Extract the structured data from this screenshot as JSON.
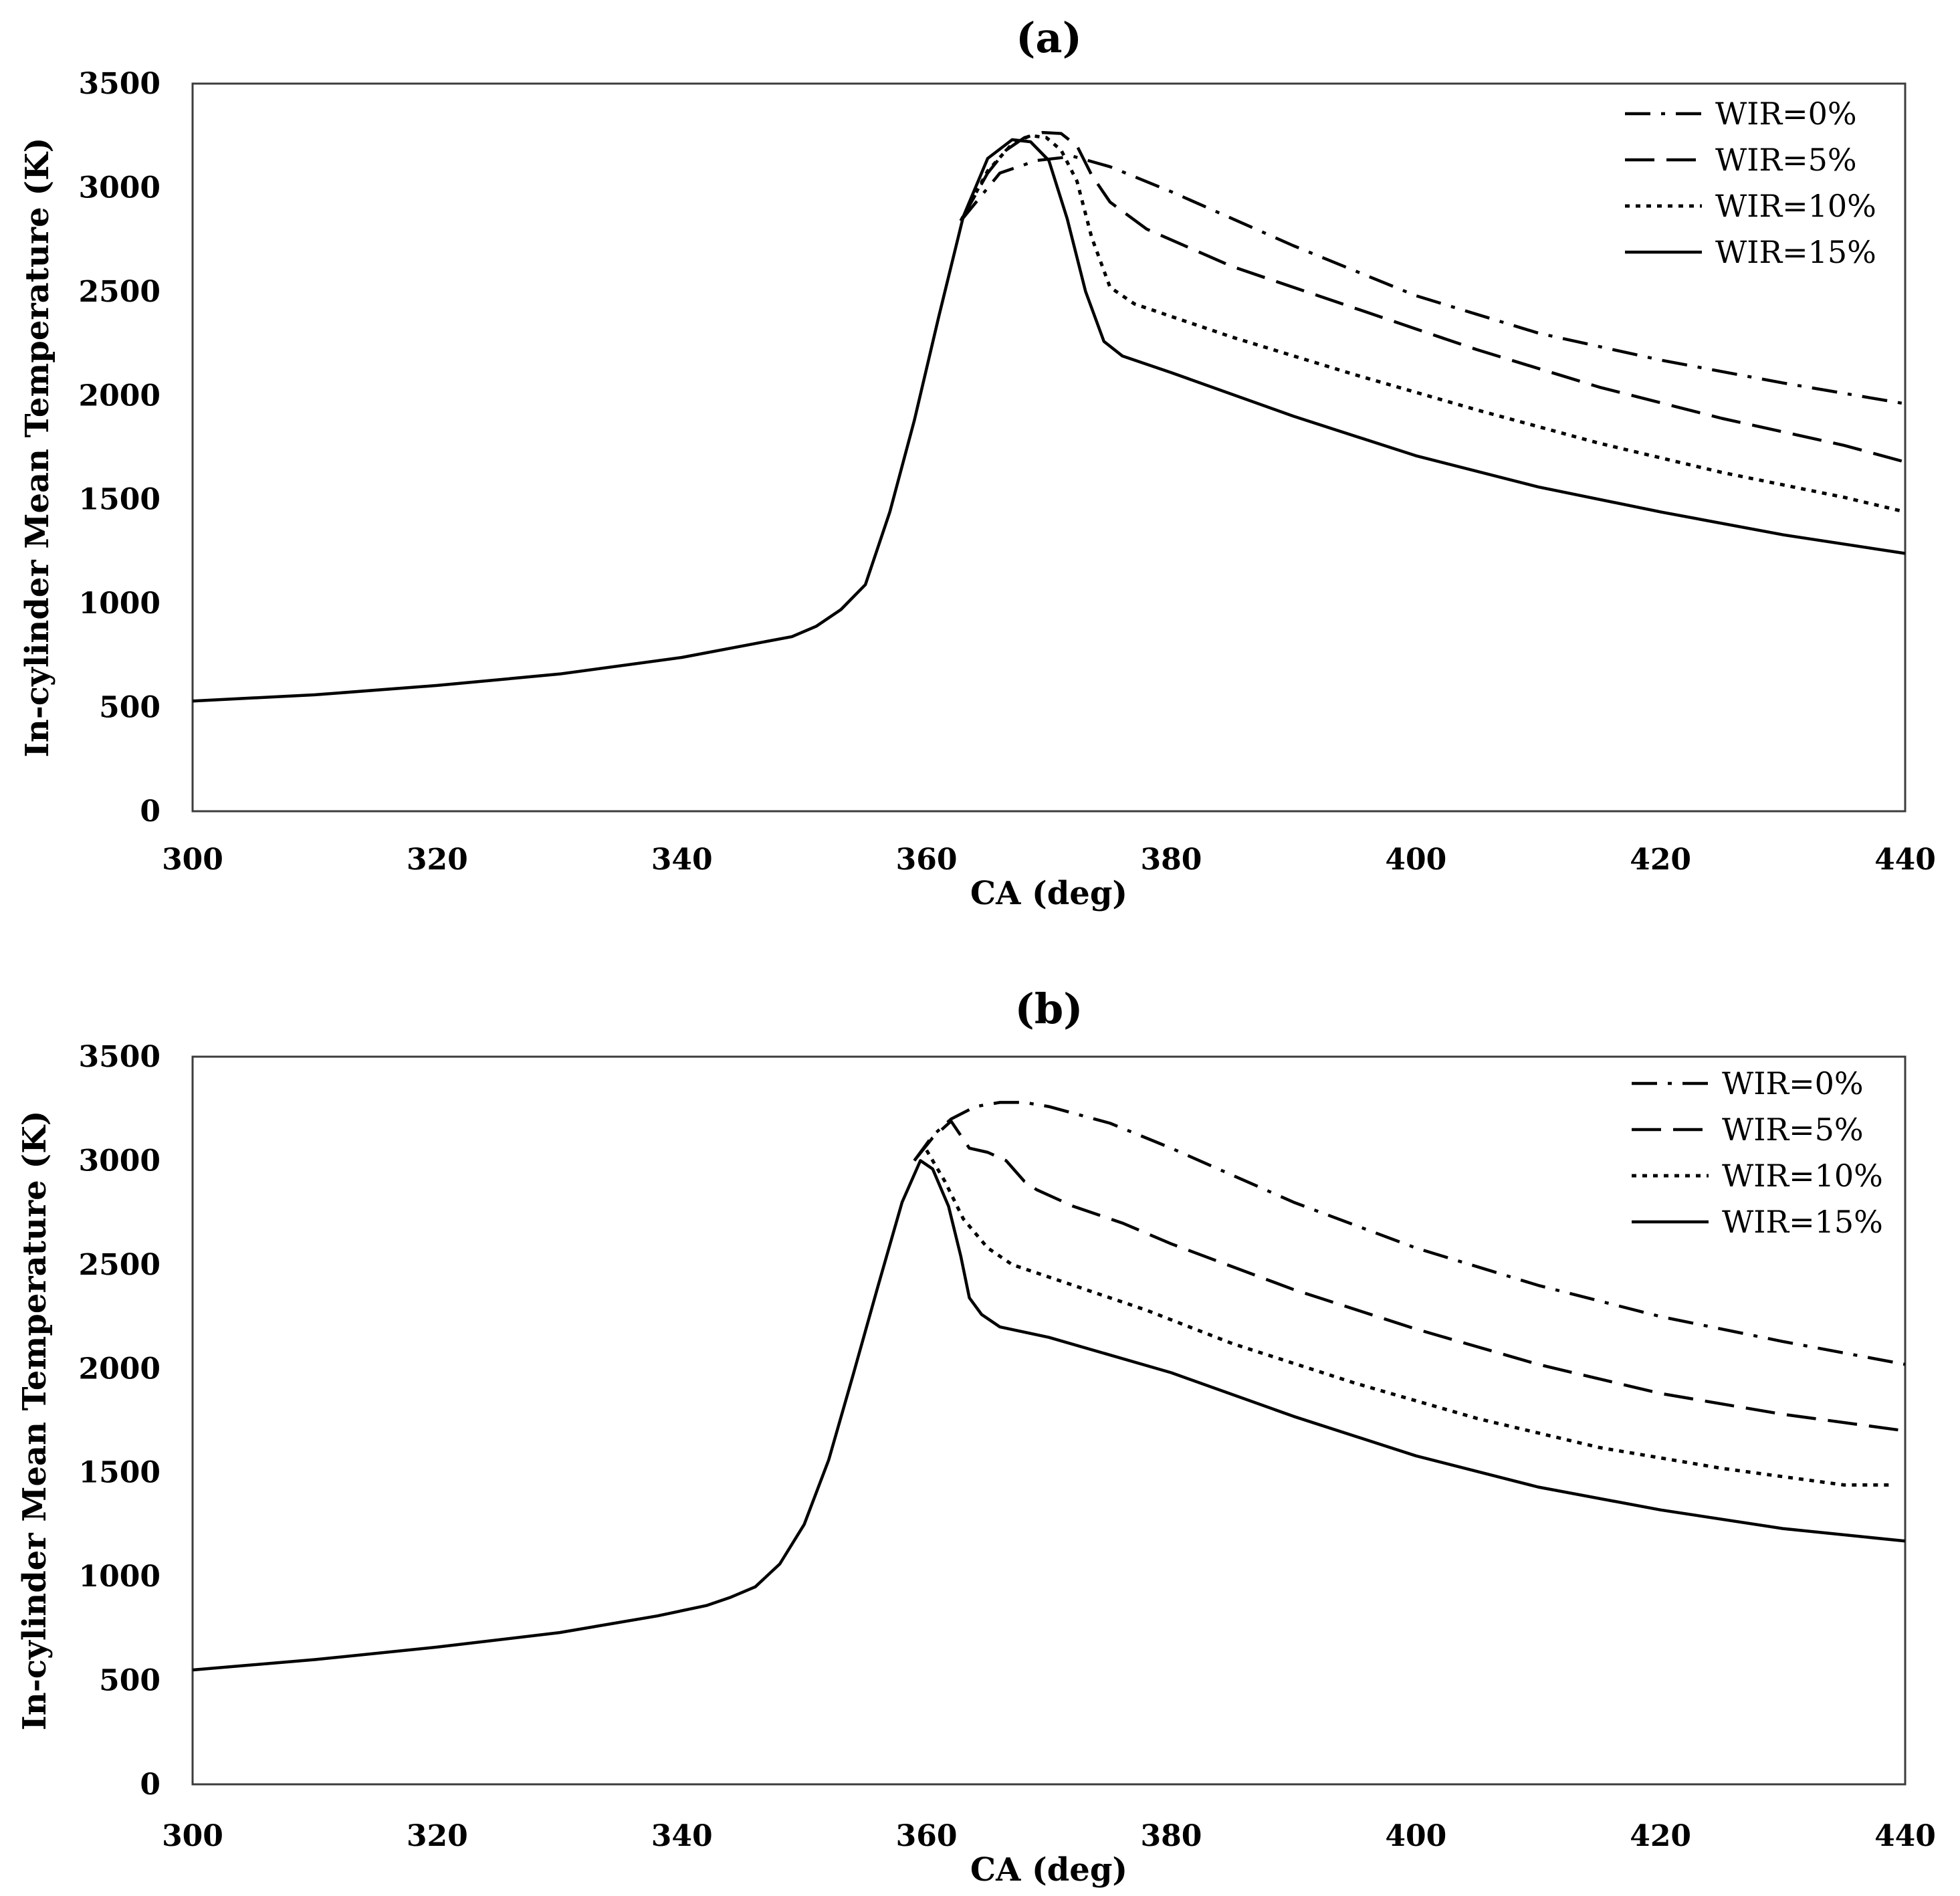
{
  "chart_data": [
    {
      "type": "line",
      "title": "(a)",
      "xlabel": "CA (deg)",
      "ylabel": "In-cylinder Mean Temperature (K)",
      "xlim": [
        300,
        440
      ],
      "ylim": [
        0,
        3500
      ],
      "xticks": [
        300,
        320,
        340,
        360,
        380,
        400,
        420,
        440
      ],
      "yticks": [
        0,
        500,
        1000,
        1500,
        2000,
        2500,
        3000,
        3500
      ],
      "legend_position": "top-right",
      "series": [
        {
          "name": "WIR=0%",
          "style": "dashdot",
          "x": [
            362.8,
            366,
            369,
            372,
            375,
            380,
            390,
            400,
            410,
            420,
            430,
            440
          ],
          "y": [
            2840,
            3070,
            3130,
            3150,
            3100,
            2980,
            2720,
            2480,
            2300,
            2170,
            2060,
            1960
          ]
        },
        {
          "name": "WIR=5%",
          "style": "dash",
          "x": [
            362.8,
            365,
            366.5,
            368,
            369.5,
            371,
            372.3,
            373.5,
            375,
            378,
            385,
            395,
            405,
            415,
            425,
            435,
            440
          ],
          "y": [
            2840,
            3070,
            3180,
            3240,
            3265,
            3260,
            3200,
            3060,
            2930,
            2800,
            2620,
            2420,
            2220,
            2040,
            1890,
            1760,
            1680
          ]
        },
        {
          "name": "WIR=10%",
          "style": "dot",
          "x": [
            362.8,
            365,
            367,
            368.5,
            369.8,
            371,
            372.3,
            373.5,
            375,
            377,
            385,
            395,
            405,
            415,
            425,
            435,
            440
          ],
          "y": [
            2840,
            3080,
            3210,
            3250,
            3240,
            3180,
            3030,
            2760,
            2520,
            2440,
            2280,
            2100,
            1930,
            1770,
            1630,
            1510,
            1440
          ]
        },
        {
          "name": "WIR=15%",
          "style": "solid",
          "x": [
            300,
            310,
            320,
            330,
            340,
            349,
            351,
            353,
            355,
            357,
            359,
            361,
            363,
            365,
            367,
            368.5,
            370,
            371.5,
            373,
            374.5,
            376,
            380,
            390,
            400,
            410,
            420,
            430,
            440
          ],
          "y": [
            530,
            560,
            605,
            660,
            740,
            840,
            890,
            970,
            1090,
            1440,
            1880,
            2380,
            2860,
            3140,
            3230,
            3220,
            3130,
            2850,
            2500,
            2260,
            2190,
            2110,
            1900,
            1710,
            1560,
            1440,
            1330,
            1240
          ]
        }
      ]
    },
    {
      "type": "line",
      "title": "(b)",
      "xlabel": "CA (deg)",
      "ylabel": "In-cylinder Mean Temperature (K)",
      "xlim": [
        300,
        440
      ],
      "ylim": [
        0,
        3500
      ],
      "xticks": [
        300,
        320,
        340,
        360,
        380,
        400,
        420,
        440
      ],
      "yticks": [
        0,
        500,
        1000,
        1500,
        2000,
        2500,
        3000,
        3500
      ],
      "legend_position": "top-right",
      "series": [
        {
          "name": "WIR=0%",
          "style": "dashdot",
          "x": [
            359,
            360.5,
            362,
            364,
            366,
            368,
            370,
            375,
            380,
            390,
            400,
            410,
            420,
            430,
            440
          ],
          "y": [
            3000,
            3120,
            3200,
            3260,
            3280,
            3280,
            3260,
            3180,
            3060,
            2800,
            2580,
            2400,
            2250,
            2130,
            2020
          ]
        },
        {
          "name": "WIR=5%",
          "style": "dash",
          "x": [
            359,
            360.5,
            362,
            363.5,
            365,
            366.5,
            368,
            369,
            372,
            376,
            380,
            390,
            400,
            410,
            420,
            430,
            440
          ],
          "y": [
            3000,
            3110,
            3190,
            3060,
            3040,
            3000,
            2900,
            2860,
            2780,
            2700,
            2600,
            2380,
            2190,
            2020,
            1880,
            1780,
            1700
          ]
        },
        {
          "name": "WIR=10%",
          "style": "dot",
          "x": [
            360,
            361.5,
            363,
            365,
            367,
            369,
            372,
            378,
            385,
            395,
            405,
            415,
            425,
            435,
            439
          ],
          "y": [
            3050,
            2900,
            2720,
            2580,
            2500,
            2460,
            2400,
            2280,
            2120,
            1930,
            1760,
            1620,
            1520,
            1440,
            1440
          ]
        },
        {
          "name": "WIR=15%",
          "style": "solid",
          "x": [
            300,
            310,
            320,
            330,
            338,
            342,
            344,
            346,
            348,
            350,
            352,
            354,
            356,
            358,
            359.5,
            360.5,
            361.8,
            362.8,
            363.5,
            364.5,
            366,
            370,
            380,
            390,
            400,
            410,
            420,
            430,
            440
          ],
          "y": [
            550,
            600,
            660,
            730,
            810,
            860,
            900,
            950,
            1060,
            1250,
            1560,
            1970,
            2390,
            2800,
            3000,
            2960,
            2780,
            2540,
            2340,
            2260,
            2200,
            2150,
            1980,
            1770,
            1580,
            1430,
            1320,
            1230,
            1170
          ]
        }
      ]
    }
  ]
}
